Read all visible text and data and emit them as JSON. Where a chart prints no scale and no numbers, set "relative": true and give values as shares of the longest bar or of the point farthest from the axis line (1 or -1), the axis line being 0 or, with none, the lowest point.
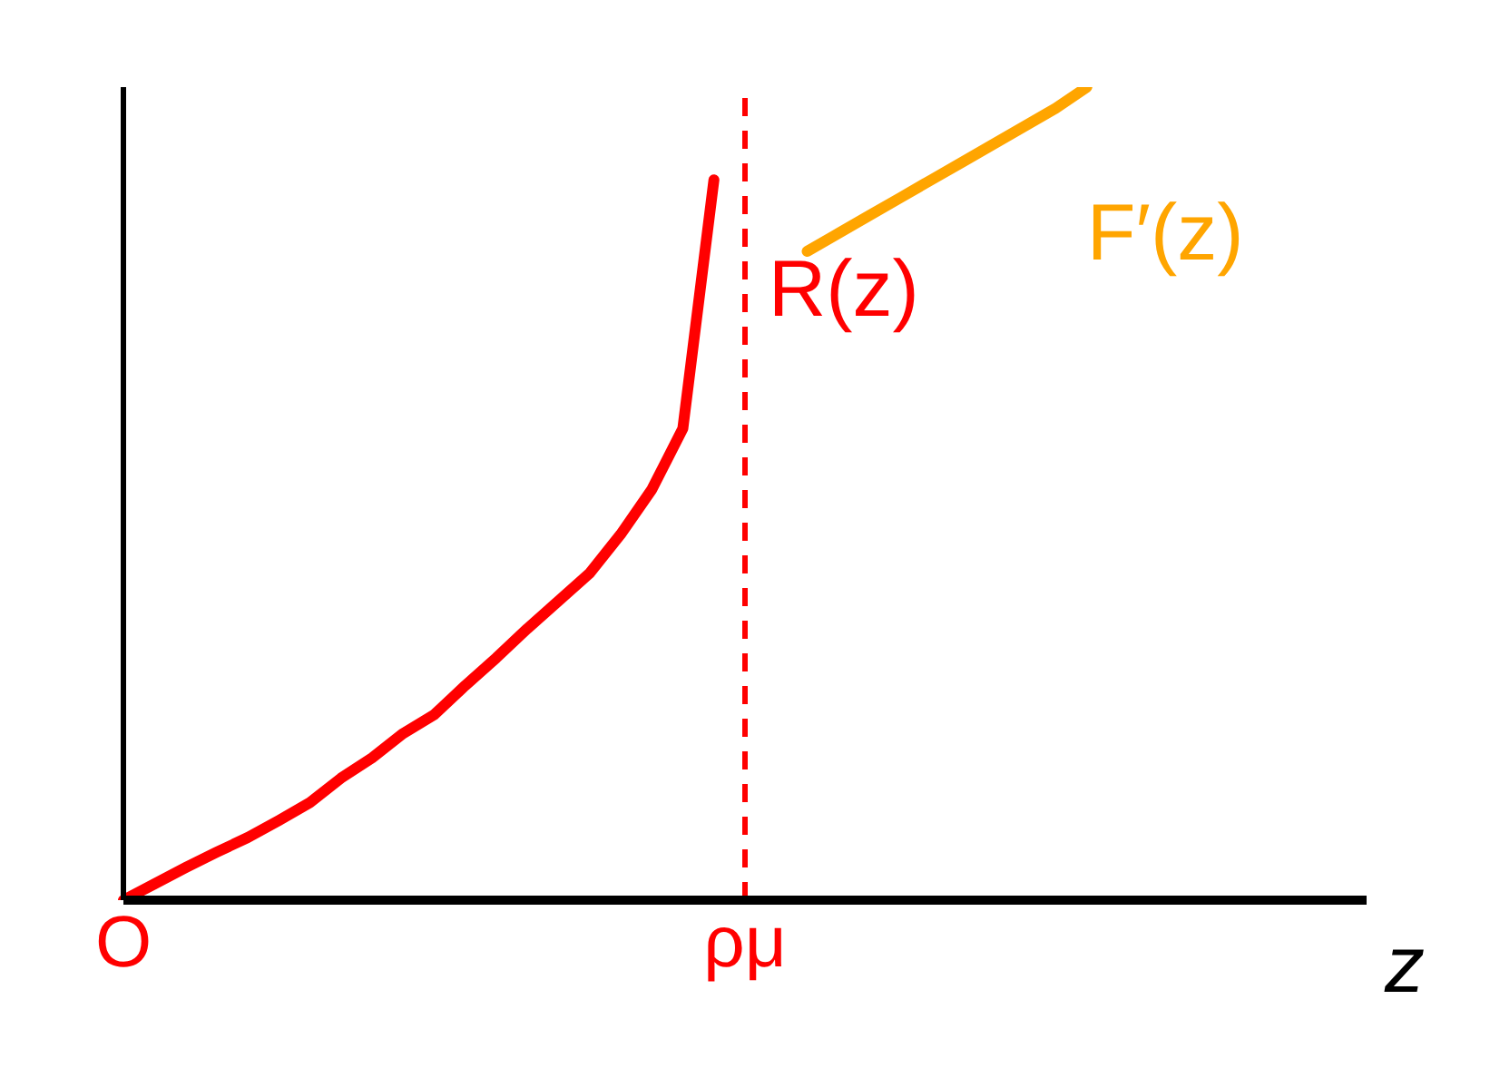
{
  "chart_data": {
    "type": "line",
    "relative": true,
    "xlabel": "z",
    "marker": "none",
    "legend": false,
    "grid": false,
    "categories": [
      "O",
      null,
      null,
      null,
      null,
      null,
      null,
      null,
      null,
      null,
      null,
      null,
      null,
      null,
      null,
      null,
      null,
      null,
      null,
      null,
      "ρμ",
      null,
      null,
      null,
      null,
      null,
      null,
      null,
      null,
      null,
      null,
      null,
      null,
      null,
      null,
      null,
      null,
      null,
      null,
      null,
      null
    ],
    "series": [
      {
        "name": "R(z)",
        "color": "#ff0000",
        "values": [
          0,
          0.02,
          0.04,
          0.059,
          0.077,
          0.098,
          0.12,
          0.15,
          0.175,
          0.205,
          0.228,
          0.264,
          0.298,
          0.334,
          0.368,
          0.402,
          0.45,
          0.505,
          0.58,
          0.886,
          null,
          null,
          null,
          null,
          null,
          null,
          null,
          null,
          null,
          null,
          null,
          null,
          null,
          null,
          null,
          null,
          null,
          null,
          null,
          null,
          null
        ]
      },
      {
        "name": "F′(z)",
        "color": "#ffa500",
        "values": [
          null,
          null,
          null,
          null,
          null,
          null,
          null,
          null,
          null,
          null,
          null,
          null,
          null,
          null,
          null,
          null,
          null,
          null,
          null,
          null,
          null,
          null,
          0.798,
          0.82,
          0.842,
          0.864,
          0.886,
          0.908,
          0.93,
          0.952,
          0.974,
          1,
          null,
          null,
          null,
          null,
          null,
          null,
          null,
          null,
          null
        ]
      }
    ],
    "ref_lines": [
      {
        "axis": "x",
        "value": "ρμ",
        "color": "#ff0000",
        "line_style": "dashed"
      }
    ]
  }
}
